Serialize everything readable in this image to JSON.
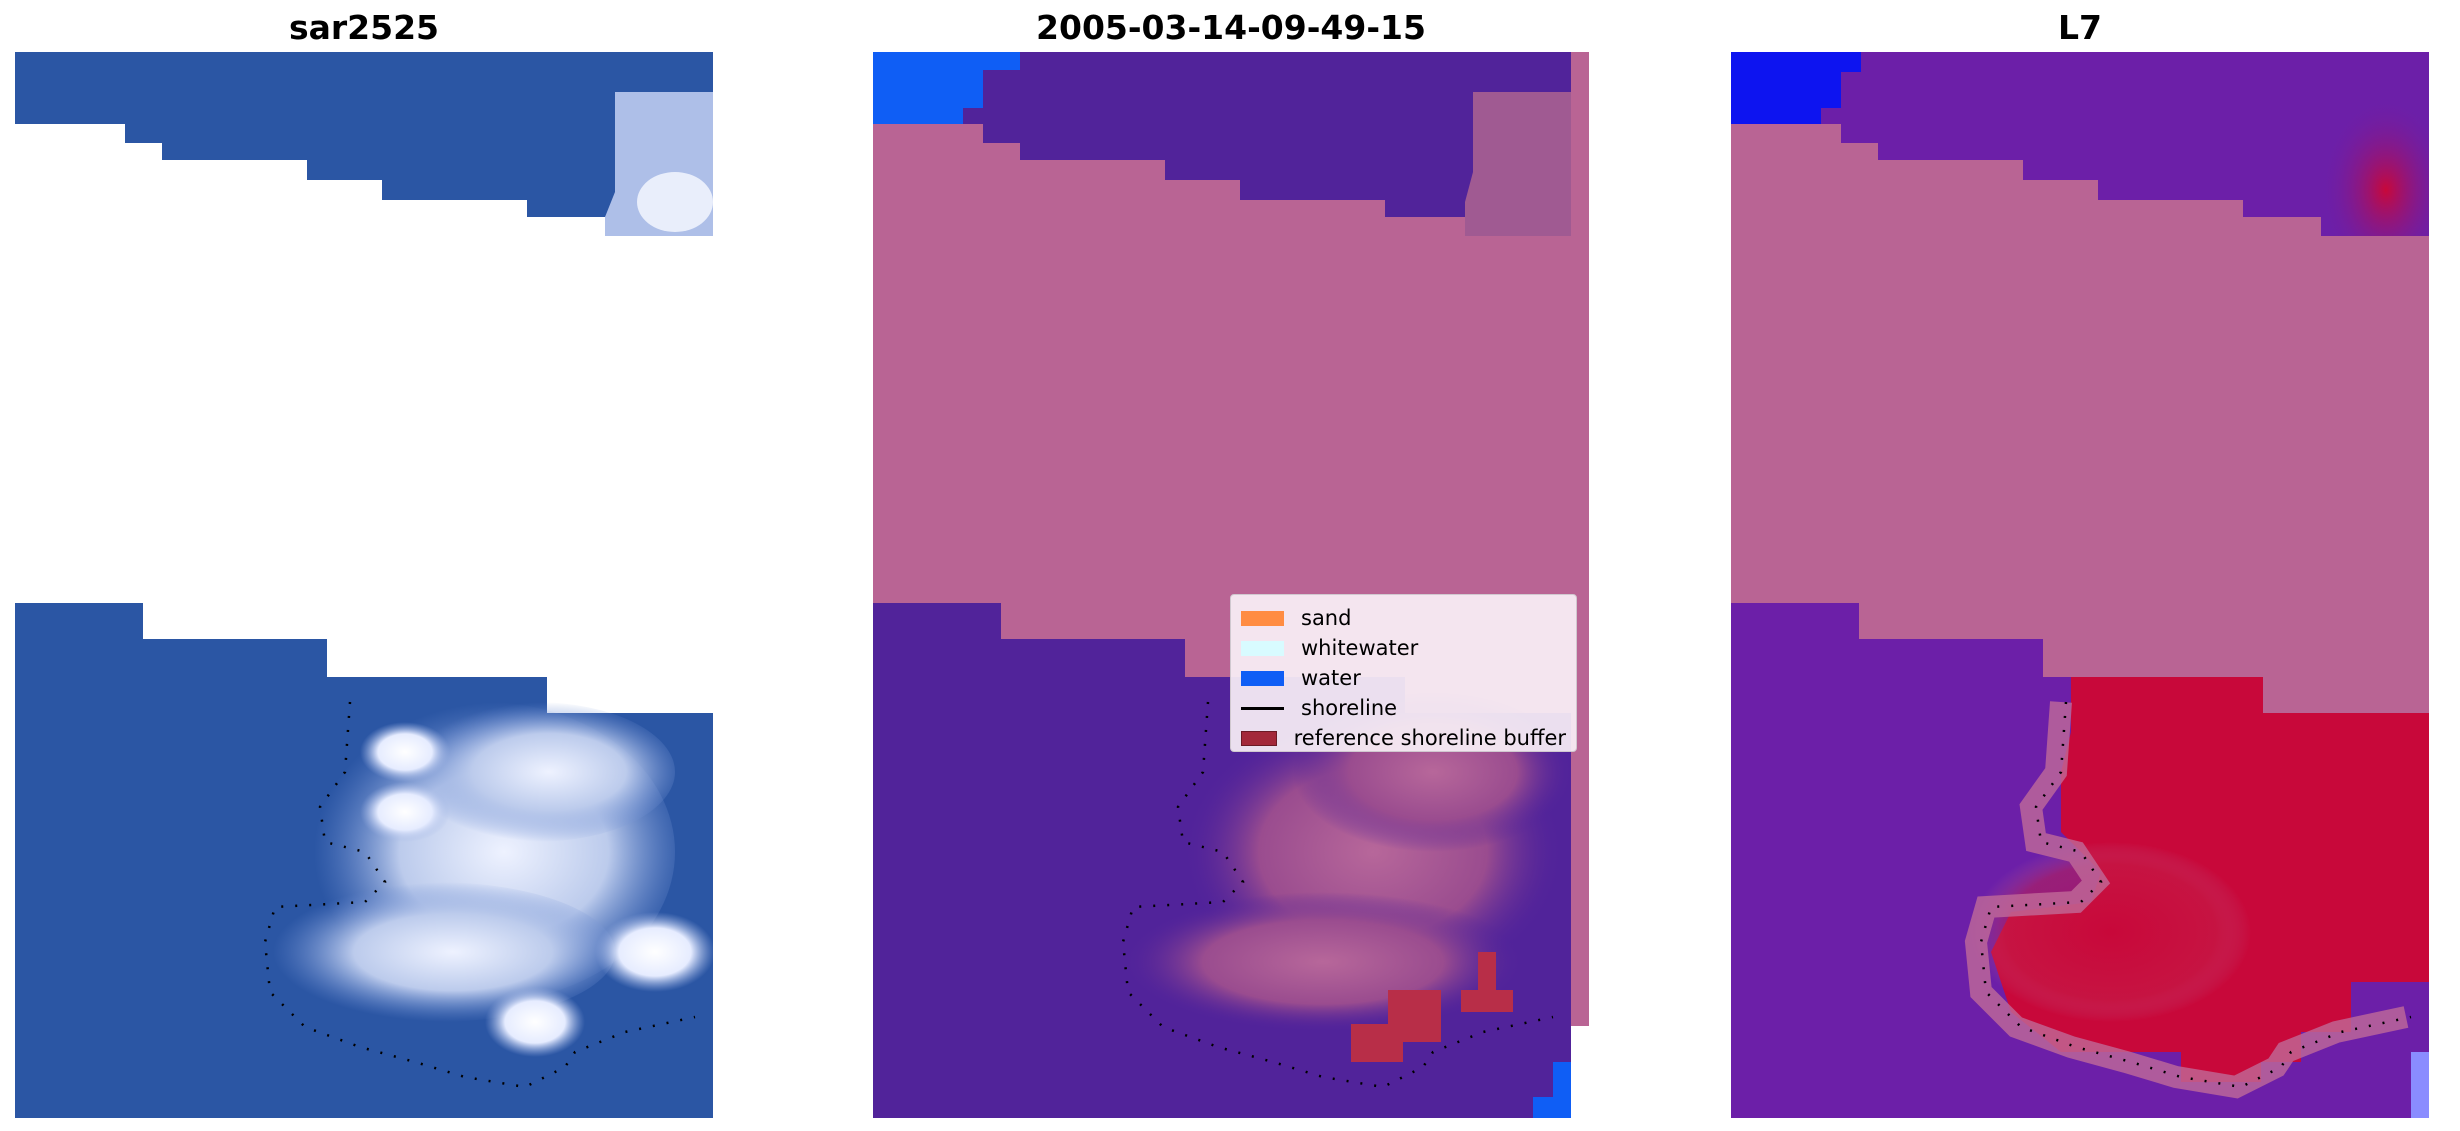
{
  "panels": [
    {
      "title": "sar2525"
    },
    {
      "title": "2005-03-14-09-49-15"
    },
    {
      "title": "L7"
    }
  ],
  "legend": {
    "items": [
      {
        "label": "sand",
        "kind": "patch",
        "color": "#ff8c42"
      },
      {
        "label": "whitewater",
        "kind": "patch",
        "color": "#d8fbff"
      },
      {
        "label": "water",
        "kind": "patch",
        "color": "#0f5ef5"
      },
      {
        "label": "shoreline",
        "kind": "line",
        "color": "#000000"
      },
      {
        "label": "reference shoreline buffer",
        "kind": "patch",
        "color": "#a3283a"
      }
    ]
  },
  "colors": {
    "sar_water": "#2b56a4",
    "sar_foam": "#c9d5ee",
    "class_water": "#51239a",
    "class_sand_overlay": "#b96494",
    "class_water_bright": "#0f5ef5",
    "buffer": "#b82e48",
    "l7_purple": "#6c1fa8",
    "l7_red": "#c8083a"
  }
}
